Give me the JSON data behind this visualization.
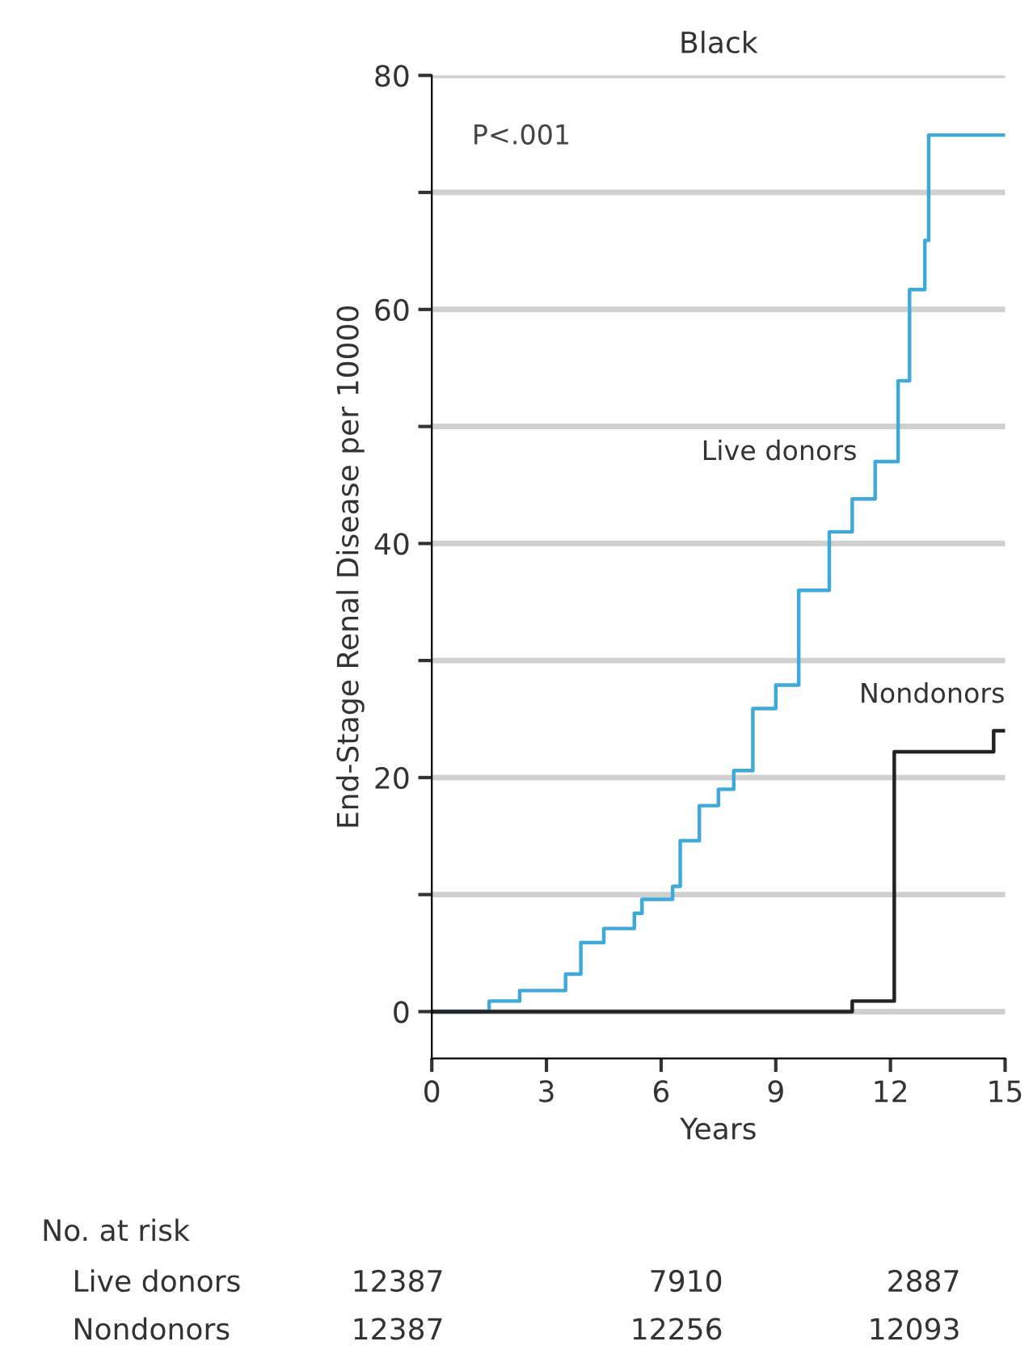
{
  "chart_data": {
    "type": "step",
    "title": "Black",
    "xlabel": "Years",
    "ylabel": "End-Stage Renal Disease per 10000",
    "xlim": [
      0,
      15
    ],
    "xticks": [
      0,
      3,
      6,
      9,
      12,
      15
    ],
    "ylim": [
      -4,
      80
    ],
    "yticks": [
      0,
      {
        "value": 10,
        "label": null
      },
      20,
      {
        "value": 30,
        "label": null
      },
      40,
      {
        "value": 50,
        "label": null
      },
      60,
      {
        "value": 70,
        "label": null
      },
      80
    ],
    "grid": "y",
    "legend": false,
    "series": [
      {
        "name": "Live donors",
        "color": "#3fa9dc",
        "x": [
          0,
          1.5,
          2.3,
          3.5,
          3.9,
          4.5,
          5.3,
          5.5,
          6.3,
          6.5,
          7.0,
          7.5,
          7.9,
          8.4,
          9.0,
          9.6,
          10.4,
          11.0,
          11.6,
          12.2,
          12.5,
          12.9,
          13.0,
          15
        ],
        "values": [
          0,
          0.9,
          1.8,
          3.2,
          5.9,
          7.1,
          8.4,
          9.6,
          10.7,
          14.6,
          17.6,
          19.0,
          20.6,
          25.9,
          27.9,
          36.0,
          41.0,
          43.8,
          47.0,
          53.9,
          61.7,
          65.9,
          74.9,
          74.9
        ]
      },
      {
        "name": "Nondonors",
        "color": "#222222",
        "x": [
          0,
          11.0,
          12.1,
          14.7,
          15
        ],
        "values": [
          0,
          0.9,
          22.2,
          24.0,
          24.0
        ]
      }
    ],
    "annotations": [
      "P<.001",
      "No. at risk",
      "Live donors",
      "12387",
      "7910",
      "2887",
      "Nondonors",
      "12387",
      "12256",
      "12093"
    ]
  }
}
